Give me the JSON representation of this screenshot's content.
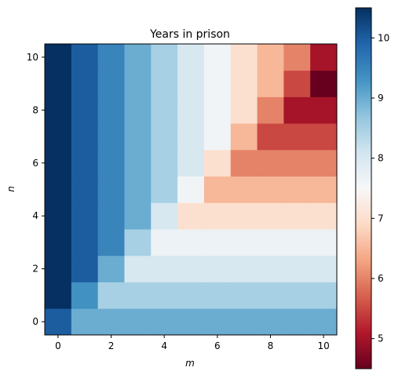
{
  "chart_data": {
    "type": "heatmap",
    "title": "Years in prison",
    "xlabel": "m",
    "ylabel": "n",
    "x": [
      0,
      1,
      2,
      3,
      4,
      5,
      6,
      7,
      8,
      9,
      10
    ],
    "y": [
      0,
      1,
      2,
      3,
      4,
      5,
      6,
      7,
      8,
      9,
      10
    ],
    "xlim": [
      -0.5,
      10.5
    ],
    "ylim": [
      -0.5,
      10.5
    ],
    "xticks": [
      0,
      2,
      4,
      6,
      8,
      10
    ],
    "yticks": [
      0,
      2,
      4,
      6,
      8,
      10
    ],
    "colorbar": {
      "range": [
        4.5,
        10.5
      ],
      "ticks": [
        5,
        6,
        7,
        8,
        9,
        10
      ],
      "colormap": "RdBu"
    },
    "colormap_stops": [
      "#67001f",
      "#b2182b",
      "#d6604d",
      "#f4a582",
      "#fddbc7",
      "#f7f7f7",
      "#d1e5f0",
      "#92c5de",
      "#4393c3",
      "#2166ac",
      "#053061"
    ],
    "grid": false,
    "values": [
      [
        10.0,
        9.0,
        9.0,
        9.0,
        9.0,
        9.0,
        9.0,
        9.0,
        9.0,
        9.0,
        9.0
      ],
      [
        10.5,
        9.33,
        8.5,
        8.5,
        8.5,
        8.5,
        8.5,
        8.5,
        8.5,
        8.5,
        8.5
      ],
      [
        10.5,
        10.0,
        9.0,
        8.0,
        8.0,
        8.0,
        8.0,
        8.0,
        8.0,
        8.0,
        8.0
      ],
      [
        10.5,
        10.0,
        9.5,
        8.5,
        7.67,
        7.67,
        7.67,
        7.67,
        7.67,
        7.67,
        7.67
      ],
      [
        10.5,
        10.0,
        9.5,
        9.0,
        8.0,
        7.0,
        7.0,
        7.0,
        7.0,
        7.0,
        7.0
      ],
      [
        10.5,
        10.0,
        9.5,
        9.0,
        8.5,
        7.6,
        6.5,
        6.5,
        6.5,
        6.5,
        6.5
      ],
      [
        10.5,
        10.0,
        9.5,
        9.0,
        8.5,
        8.0,
        7.0,
        6.0,
        6.0,
        6.0,
        6.0
      ],
      [
        10.5,
        10.0,
        9.5,
        9.0,
        8.5,
        8.0,
        7.6,
        6.5,
        5.5,
        5.5,
        5.5
      ],
      [
        10.5,
        10.0,
        9.5,
        9.0,
        8.5,
        8.0,
        7.6,
        7.0,
        6.0,
        5.0,
        5.0
      ],
      [
        10.5,
        10.0,
        9.5,
        9.0,
        8.5,
        8.0,
        7.6,
        7.0,
        6.5,
        5.5,
        4.5
      ],
      [
        10.5,
        10.0,
        9.5,
        9.0,
        8.5,
        8.0,
        7.6,
        7.0,
        6.5,
        6.0,
        5.0
      ]
    ]
  }
}
